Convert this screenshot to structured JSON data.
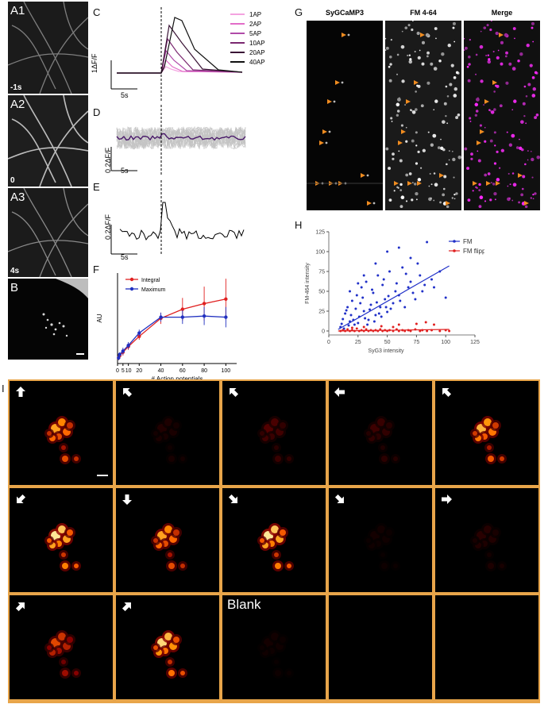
{
  "panel_labels": {
    "A1": "A1",
    "A2": "A2",
    "A3": "A3",
    "B": "B",
    "C": "C",
    "D": "D",
    "E": "E",
    "F": "F",
    "G": "G",
    "H": "H",
    "I": "I"
  },
  "panelA": {
    "time_labels": [
      "-1s",
      "0",
      "4s"
    ]
  },
  "panelC": {
    "legend": [
      "1AP",
      "2AP",
      "5AP",
      "10AP",
      "20AP",
      "40AP"
    ],
    "legend_colors": [
      "#f4a3e0",
      "#e26cc8",
      "#b04aa8",
      "#7a2870",
      "#3a1436",
      "#111111"
    ],
    "scale_y": "1ΔF/F",
    "scale_x": "5s"
  },
  "panelD": {
    "scale_y": "0.2ΔF/F",
    "scale_x": "5s"
  },
  "panelE": {
    "scale_y": "0.2ΔF/F",
    "scale_x": "5s"
  },
  "panelG": {
    "titles": [
      "SyGCaMP3",
      "FM 4-64",
      "Merge"
    ]
  },
  "chart_data": [
    {
      "type": "line",
      "panel": "F",
      "xlabel": "# Action potentials",
      "ylabel": "AU",
      "x": [
        1,
        2,
        5,
        10,
        20,
        40,
        60,
        80,
        100
      ],
      "xticks": [
        "0",
        "5",
        "10",
        "20",
        "40",
        "60",
        "80",
        "100"
      ],
      "xtick_values": [
        0,
        5,
        10,
        20,
        40,
        60,
        80,
        100
      ],
      "ylim": [
        0,
        0.8
      ],
      "xlim": [
        0,
        110
      ],
      "series": [
        {
          "name": "Integral",
          "color": "#e02020",
          "values": [
            0.05,
            0.07,
            0.1,
            0.15,
            0.24,
            0.4,
            0.48,
            0.53,
            0.57
          ],
          "errors": [
            0.02,
            0.02,
            0.03,
            0.03,
            0.03,
            0.05,
            0.1,
            0.15,
            0.18
          ]
        },
        {
          "name": "Maximum",
          "color": "#2030c0",
          "values": [
            0.05,
            0.08,
            0.11,
            0.16,
            0.27,
            0.41,
            0.41,
            0.42,
            0.41
          ],
          "errors": [
            0.02,
            0.02,
            0.03,
            0.03,
            0.03,
            0.04,
            0.06,
            0.08,
            0.09
          ]
        }
      ]
    },
    {
      "type": "scatter",
      "panel": "H",
      "xlabel": "SyG3 intensity",
      "ylabel": "FM-464 intensity",
      "xlim": [
        0,
        125
      ],
      "ylim": [
        -5,
        125
      ],
      "xticks": [
        "0",
        "25",
        "50",
        "75",
        "100",
        "125"
      ],
      "xtick_values": [
        0,
        25,
        50,
        75,
        100,
        125
      ],
      "yticks": [
        "0",
        "25",
        "50",
        "75",
        "100",
        "125"
      ],
      "ytick_values": [
        0,
        25,
        50,
        75,
        100,
        125
      ],
      "series": [
        {
          "name": "FM",
          "color": "#2030c8",
          "fit": {
            "x": [
              8,
              103
            ],
            "y": [
              2,
              82
            ]
          },
          "points": [
            [
              10,
              5
            ],
            [
              12,
              15
            ],
            [
              14,
              22
            ],
            [
              16,
              30
            ],
            [
              18,
              12
            ],
            [
              20,
              38
            ],
            [
              22,
              8
            ],
            [
              24,
              45
            ],
            [
              26,
              18
            ],
            [
              28,
              55
            ],
            [
              30,
              25
            ],
            [
              32,
              62
            ],
            [
              34,
              14
            ],
            [
              36,
              33
            ],
            [
              38,
              48
            ],
            [
              40,
              20
            ],
            [
              42,
              70
            ],
            [
              44,
              30
            ],
            [
              46,
              58
            ],
            [
              48,
              40
            ],
            [
              50,
              24
            ],
            [
              52,
              75
            ],
            [
              55,
              35
            ],
            [
              58,
              60
            ],
            [
              60,
              45
            ],
            [
              63,
              80
            ],
            [
              65,
              30
            ],
            [
              68,
              55
            ],
            [
              70,
              62
            ],
            [
              74,
              40
            ],
            [
              78,
              70
            ],
            [
              80,
              50
            ],
            [
              84,
              112
            ],
            [
              88,
              65
            ],
            [
              95,
              75
            ],
            [
              100,
              42
            ],
            [
              11,
              9
            ],
            [
              13,
              3
            ],
            [
              15,
              26
            ],
            [
              17,
              7
            ],
            [
              19,
              20
            ],
            [
              21,
              14
            ],
            [
              23,
              28
            ],
            [
              25,
              10
            ],
            [
              27,
              35
            ],
            [
              29,
              42
            ],
            [
              31,
              16
            ],
            [
              33,
              8
            ],
            [
              35,
              27
            ],
            [
              37,
              52
            ],
            [
              39,
              12
            ],
            [
              41,
              36
            ],
            [
              43,
              22
            ],
            [
              45,
              18
            ],
            [
              47,
              65
            ],
            [
              49,
              30
            ],
            [
              51,
              44
            ],
            [
              53,
              28
            ],
            [
              57,
              50
            ],
            [
              61,
              38
            ],
            [
              66,
              72
            ],
            [
              72,
              48
            ],
            [
              76,
              85
            ],
            [
              82,
              58
            ],
            [
              90,
              55
            ],
            [
              18,
              50
            ],
            [
              25,
              60
            ],
            [
              30,
              70
            ],
            [
              40,
              85
            ],
            [
              50,
              100
            ],
            [
              60,
              105
            ],
            [
              70,
              92
            ]
          ]
        },
        {
          "name": "FM flipped",
          "color": "#e02020",
          "fit": {
            "x": [
              8,
              103
            ],
            "y": [
              0,
              2
            ]
          },
          "points": [
            [
              10,
              0
            ],
            [
              12,
              1
            ],
            [
              14,
              0
            ],
            [
              16,
              2
            ],
            [
              18,
              0
            ],
            [
              20,
              1
            ],
            [
              22,
              0
            ],
            [
              24,
              3
            ],
            [
              26,
              0
            ],
            [
              28,
              1
            ],
            [
              30,
              0
            ],
            [
              32,
              2
            ],
            [
              34,
              0
            ],
            [
              36,
              1
            ],
            [
              38,
              0
            ],
            [
              40,
              1
            ],
            [
              42,
              0
            ],
            [
              44,
              2
            ],
            [
              46,
              0
            ],
            [
              48,
              1
            ],
            [
              50,
              0
            ],
            [
              52,
              1
            ],
            [
              55,
              0
            ],
            [
              58,
              2
            ],
            [
              60,
              0
            ],
            [
              63,
              1
            ],
            [
              65,
              0
            ],
            [
              68,
              1
            ],
            [
              70,
              0
            ],
            [
              74,
              2
            ],
            [
              78,
              0
            ],
            [
              80,
              1
            ],
            [
              84,
              0
            ],
            [
              88,
              1
            ],
            [
              95,
              0
            ],
            [
              100,
              1
            ],
            [
              103,
              0
            ],
            [
              45,
              6
            ],
            [
              60,
              8
            ],
            [
              75,
              9
            ],
            [
              83,
              11
            ],
            [
              90,
              8
            ],
            [
              30,
              5
            ],
            [
              20,
              4
            ],
            [
              55,
              5
            ]
          ]
        }
      ]
    }
  ],
  "panelI": {
    "blank_label": "Blank",
    "arrow_angles": [
      -90,
      -135,
      -135,
      180,
      -135,
      135,
      90,
      45,
      45,
      0,
      -45,
      -45,
      null,
      null,
      null
    ],
    "brightness": [
      0.8,
      0.08,
      0.2,
      0.15,
      0.85,
      1.0,
      0.8,
      1.0,
      0.05,
      0.1,
      0.55,
      0.95,
      0.05,
      0,
      0
    ]
  }
}
